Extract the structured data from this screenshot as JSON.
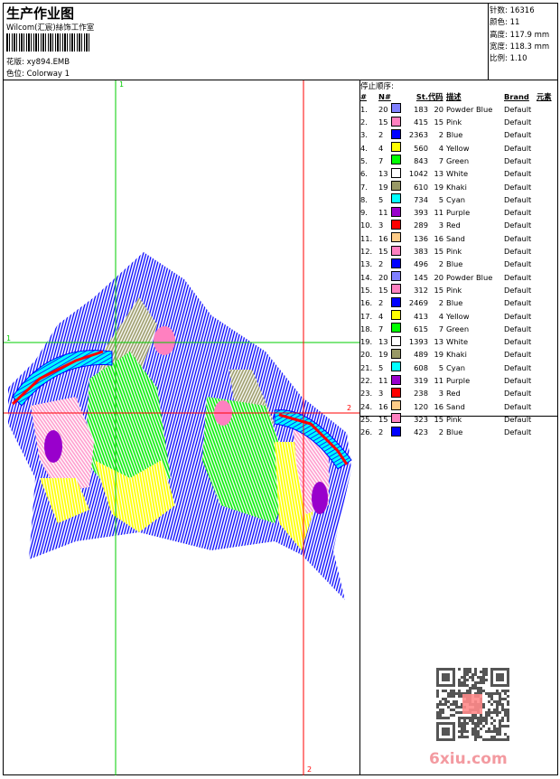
{
  "header": {
    "title": "生产作业图",
    "company": "Wilcom(汇宸)絲饰工作室",
    "design_label": "花版:",
    "design_value": "xy894.EMB",
    "colorway_label": "色位:",
    "colorway_value": "Colorway 1"
  },
  "stats": {
    "stitches_label": "针数:",
    "stitches_value": "16316",
    "colors_label": "颜色:",
    "colors_value": "11",
    "height_label": "高度:",
    "height_value": "117.9 mm",
    "width_label": "宽度:",
    "width_value": "118.3 mm",
    "scale_label": "比例:",
    "scale_value": "1.10"
  },
  "stop_sequence": {
    "title": "停止顺序:",
    "columns": [
      "#",
      "N#",
      "St.",
      "代码",
      "描述",
      "Brand",
      "元素"
    ],
    "rows": [
      {
        "idx": "1.",
        "n": "20",
        "color": "#8080ff",
        "st": "183",
        "code": "20",
        "desc": "Powder Blue",
        "brand": "Default"
      },
      {
        "idx": "2.",
        "n": "15",
        "color": "#ff80c0",
        "st": "415",
        "code": "15",
        "desc": "Pink",
        "brand": "Default"
      },
      {
        "idx": "3.",
        "n": "2",
        "color": "#0000ff",
        "st": "2363",
        "code": "2",
        "desc": "Blue",
        "brand": "Default"
      },
      {
        "idx": "4.",
        "n": "4",
        "color": "#ffff00",
        "st": "560",
        "code": "4",
        "desc": "Yellow",
        "brand": "Default"
      },
      {
        "idx": "5.",
        "n": "7",
        "color": "#00ff00",
        "st": "843",
        "code": "7",
        "desc": "Green",
        "brand": "Default"
      },
      {
        "idx": "6.",
        "n": "13",
        "color": "#ffffff",
        "st": "1042",
        "code": "13",
        "desc": "White",
        "brand": "Default"
      },
      {
        "idx": "7.",
        "n": "19",
        "color": "#999966",
        "st": "610",
        "code": "19",
        "desc": "Khaki",
        "brand": "Default"
      },
      {
        "idx": "8.",
        "n": "5",
        "color": "#00ffff",
        "st": "734",
        "code": "5",
        "desc": "Cyan",
        "brand": "Default"
      },
      {
        "idx": "9.",
        "n": "11",
        "color": "#9900cc",
        "st": "393",
        "code": "11",
        "desc": "Purple",
        "brand": "Default"
      },
      {
        "idx": "10.",
        "n": "3",
        "color": "#ff0000",
        "st": "289",
        "code": "3",
        "desc": "Red",
        "brand": "Default"
      },
      {
        "idx": "11.",
        "n": "16",
        "color": "#ffcc88",
        "st": "136",
        "code": "16",
        "desc": "Sand",
        "brand": "Default"
      },
      {
        "idx": "12.",
        "n": "15",
        "color": "#ff80c0",
        "st": "383",
        "code": "15",
        "desc": "Pink",
        "brand": "Default"
      },
      {
        "idx": "13.",
        "n": "2",
        "color": "#0000ff",
        "st": "496",
        "code": "2",
        "desc": "Blue",
        "brand": "Default"
      },
      {
        "idx": "14.",
        "n": "20",
        "color": "#8080ff",
        "st": "145",
        "code": "20",
        "desc": "Powder Blue",
        "brand": "Default"
      },
      {
        "idx": "15.",
        "n": "15",
        "color": "#ff80c0",
        "st": "312",
        "code": "15",
        "desc": "Pink",
        "brand": "Default"
      },
      {
        "idx": "16.",
        "n": "2",
        "color": "#0000ff",
        "st": "2469",
        "code": "2",
        "desc": "Blue",
        "brand": "Default"
      },
      {
        "idx": "17.",
        "n": "4",
        "color": "#ffff00",
        "st": "413",
        "code": "4",
        "desc": "Yellow",
        "brand": "Default"
      },
      {
        "idx": "18.",
        "n": "7",
        "color": "#00ff00",
        "st": "615",
        "code": "7",
        "desc": "Green",
        "brand": "Default"
      },
      {
        "idx": "19.",
        "n": "13",
        "color": "#ffffff",
        "st": "1393",
        "code": "13",
        "desc": "White",
        "brand": "Default"
      },
      {
        "idx": "20.",
        "n": "19",
        "color": "#999966",
        "st": "489",
        "code": "19",
        "desc": "Khaki",
        "brand": "Default"
      },
      {
        "idx": "21.",
        "n": "5",
        "color": "#00ffff",
        "st": "608",
        "code": "5",
        "desc": "Cyan",
        "brand": "Default"
      },
      {
        "idx": "22.",
        "n": "11",
        "color": "#9900cc",
        "st": "319",
        "code": "11",
        "desc": "Purple",
        "brand": "Default"
      },
      {
        "idx": "23.",
        "n": "3",
        "color": "#ff0000",
        "st": "238",
        "code": "3",
        "desc": "Red",
        "brand": "Default"
      },
      {
        "idx": "24.",
        "n": "16",
        "color": "#ffcc88",
        "st": "120",
        "code": "16",
        "desc": "Sand",
        "brand": "Default"
      },
      {
        "idx": "25.",
        "n": "15",
        "color": "#ff80c0",
        "st": "323",
        "code": "15",
        "desc": "Pink",
        "brand": "Default"
      },
      {
        "idx": "26.",
        "n": "2",
        "color": "#0000ff",
        "st": "423",
        "code": "2",
        "desc": "Blue",
        "brand": "Default"
      }
    ]
  },
  "guides": {
    "green_label": "1",
    "red_label": "2",
    "green_color": "#00cc00",
    "red_color": "#ff0000"
  },
  "watermark": {
    "text": "6xiu.com",
    "stamp": "以图版"
  }
}
